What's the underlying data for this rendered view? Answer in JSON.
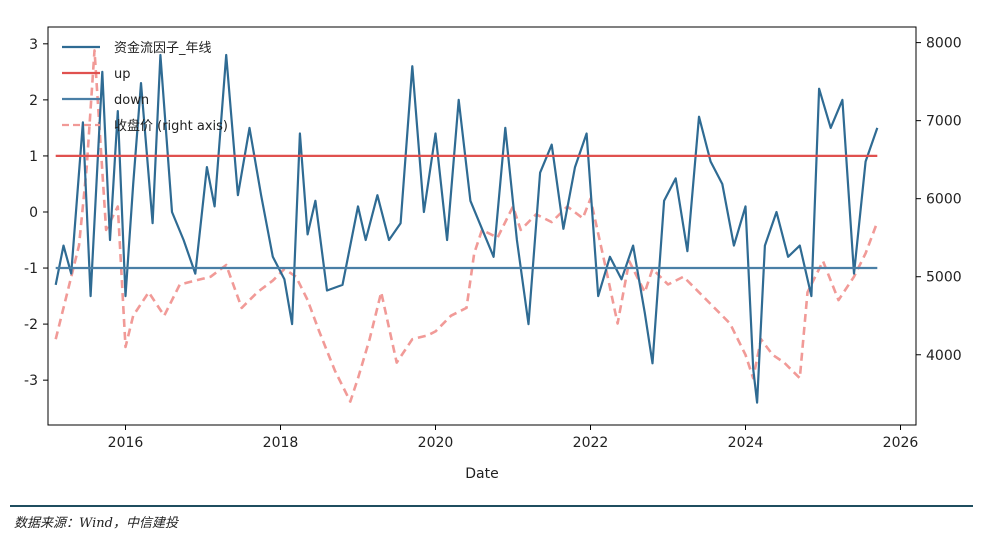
{
  "chart_data": {
    "type": "line",
    "xlabel": "Date",
    "x_ticks": [
      "2016",
      "2018",
      "2020",
      "2022",
      "2024",
      "2026"
    ],
    "x_range": [
      2015.0,
      2026.2
    ],
    "y_left_ticks": [
      "3",
      "2",
      "1",
      "0",
      "-1",
      "-2",
      "-3"
    ],
    "y_left_range": [
      -3.8,
      3.3
    ],
    "y_right_ticks": [
      "8000",
      "7000",
      "6000",
      "5000",
      "4000"
    ],
    "y_right_range": [
      3100,
      8200
    ],
    "legend_position": "top-left",
    "colors": {
      "factor": "#2f6b93",
      "up": "#e0514f",
      "down": "#4a7fa6",
      "close": "#f19a97"
    },
    "series": [
      {
        "name": "资金流因子_年线",
        "key": "factor",
        "axis": "left",
        "style": "solid",
        "x": [
          2015.1,
          2015.2,
          2015.3,
          2015.45,
          2015.55,
          2015.7,
          2015.8,
          2015.9,
          2016.0,
          2016.1,
          2016.2,
          2016.35,
          2016.45,
          2016.6,
          2016.75,
          2016.9,
          2017.05,
          2017.15,
          2017.3,
          2017.45,
          2017.6,
          2017.75,
          2017.9,
          2018.05,
          2018.15,
          2018.25,
          2018.35,
          2018.45,
          2018.6,
          2018.8,
          2019.0,
          2019.1,
          2019.25,
          2019.4,
          2019.55,
          2019.7,
          2019.85,
          2020.0,
          2020.15,
          2020.3,
          2020.45,
          2020.6,
          2020.75,
          2020.9,
          2021.05,
          2021.2,
          2021.35,
          2021.5,
          2021.65,
          2021.8,
          2021.95,
          2022.1,
          2022.25,
          2022.4,
          2022.55,
          2022.7,
          2022.8,
          2022.95,
          2023.1,
          2023.25,
          2023.4,
          2023.55,
          2023.7,
          2023.85,
          2024.0,
          2024.1,
          2024.15,
          2024.25,
          2024.4,
          2024.55,
          2024.7,
          2024.85,
          2024.95,
          2025.1,
          2025.25,
          2025.4,
          2025.55,
          2025.7
        ],
        "values": [
          -1.3,
          -0.6,
          -1.1,
          1.6,
          -1.5,
          2.5,
          -0.5,
          1.8,
          -1.5,
          0.5,
          2.3,
          -0.2,
          2.8,
          0.0,
          -0.5,
          -1.1,
          0.8,
          0.1,
          2.8,
          0.3,
          1.5,
          0.3,
          -0.8,
          -1.2,
          -2.0,
          1.4,
          -0.4,
          0.2,
          -1.4,
          -1.3,
          0.1,
          -0.5,
          0.3,
          -0.5,
          -0.2,
          2.6,
          0.0,
          1.4,
          -0.5,
          2.0,
          0.2,
          -0.3,
          -0.8,
          1.5,
          -0.5,
          -2.0,
          0.7,
          1.2,
          -0.3,
          0.8,
          1.4,
          -1.5,
          -0.8,
          -1.2,
          -0.6,
          -1.8,
          -2.7,
          0.2,
          0.6,
          -0.7,
          1.7,
          0.9,
          0.5,
          -0.6,
          0.1,
          -2.8,
          -3.4,
          -0.6,
          0.0,
          -0.8,
          -0.6,
          -1.5,
          2.2,
          1.5,
          2.0,
          -1.1,
          0.9,
          1.5
        ]
      },
      {
        "name": "up",
        "key": "up",
        "axis": "left",
        "style": "solid",
        "x": [
          2015.1,
          2025.7
        ],
        "values": [
          1,
          1
        ]
      },
      {
        "name": "down",
        "key": "down",
        "axis": "left",
        "style": "solid",
        "x": [
          2015.1,
          2025.7
        ],
        "values": [
          -1,
          -1
        ]
      },
      {
        "name": "收盘价 (right axis)",
        "key": "close",
        "axis": "right",
        "style": "dashed",
        "x": [
          2015.1,
          2015.25,
          2015.4,
          2015.5,
          2015.6,
          2015.75,
          2015.9,
          2016.0,
          2016.1,
          2016.3,
          2016.5,
          2016.7,
          2016.9,
          2017.1,
          2017.3,
          2017.5,
          2017.7,
          2017.9,
          2018.05,
          2018.2,
          2018.35,
          2018.5,
          2018.7,
          2018.9,
          2019.0,
          2019.15,
          2019.3,
          2019.5,
          2019.7,
          2019.9,
          2020.0,
          2020.2,
          2020.4,
          2020.5,
          2020.6,
          2020.8,
          2021.0,
          2021.1,
          2021.3,
          2021.5,
          2021.7,
          2021.9,
          2022.0,
          2022.2,
          2022.35,
          2022.5,
          2022.7,
          2022.8,
          2023.0,
          2023.2,
          2023.4,
          2023.6,
          2023.8,
          2024.0,
          2024.1,
          2024.2,
          2024.35,
          2024.5,
          2024.7,
          2024.8,
          2025.0,
          2025.2,
          2025.4,
          2025.55,
          2025.7
        ],
        "values": [
          4200,
          4800,
          5400,
          6400,
          7900,
          5600,
          5900,
          4100,
          4500,
          4800,
          4500,
          4900,
          4950,
          5000,
          5150,
          4600,
          4800,
          4950,
          5100,
          5000,
          4700,
          4300,
          3800,
          3400,
          3700,
          4200,
          4800,
          3900,
          4200,
          4250,
          4300,
          4500,
          4600,
          5300,
          5600,
          5500,
          5900,
          5600,
          5800,
          5700,
          5900,
          5750,
          6000,
          5100,
          4400,
          5200,
          4800,
          5100,
          4900,
          5000,
          4800,
          4600,
          4400,
          4000,
          3700,
          4200,
          4000,
          3900,
          3700,
          4800,
          5200,
          4700,
          5000,
          5300,
          5700
        ]
      }
    ]
  },
  "source_note": "数据来源：Wind，中信建投"
}
